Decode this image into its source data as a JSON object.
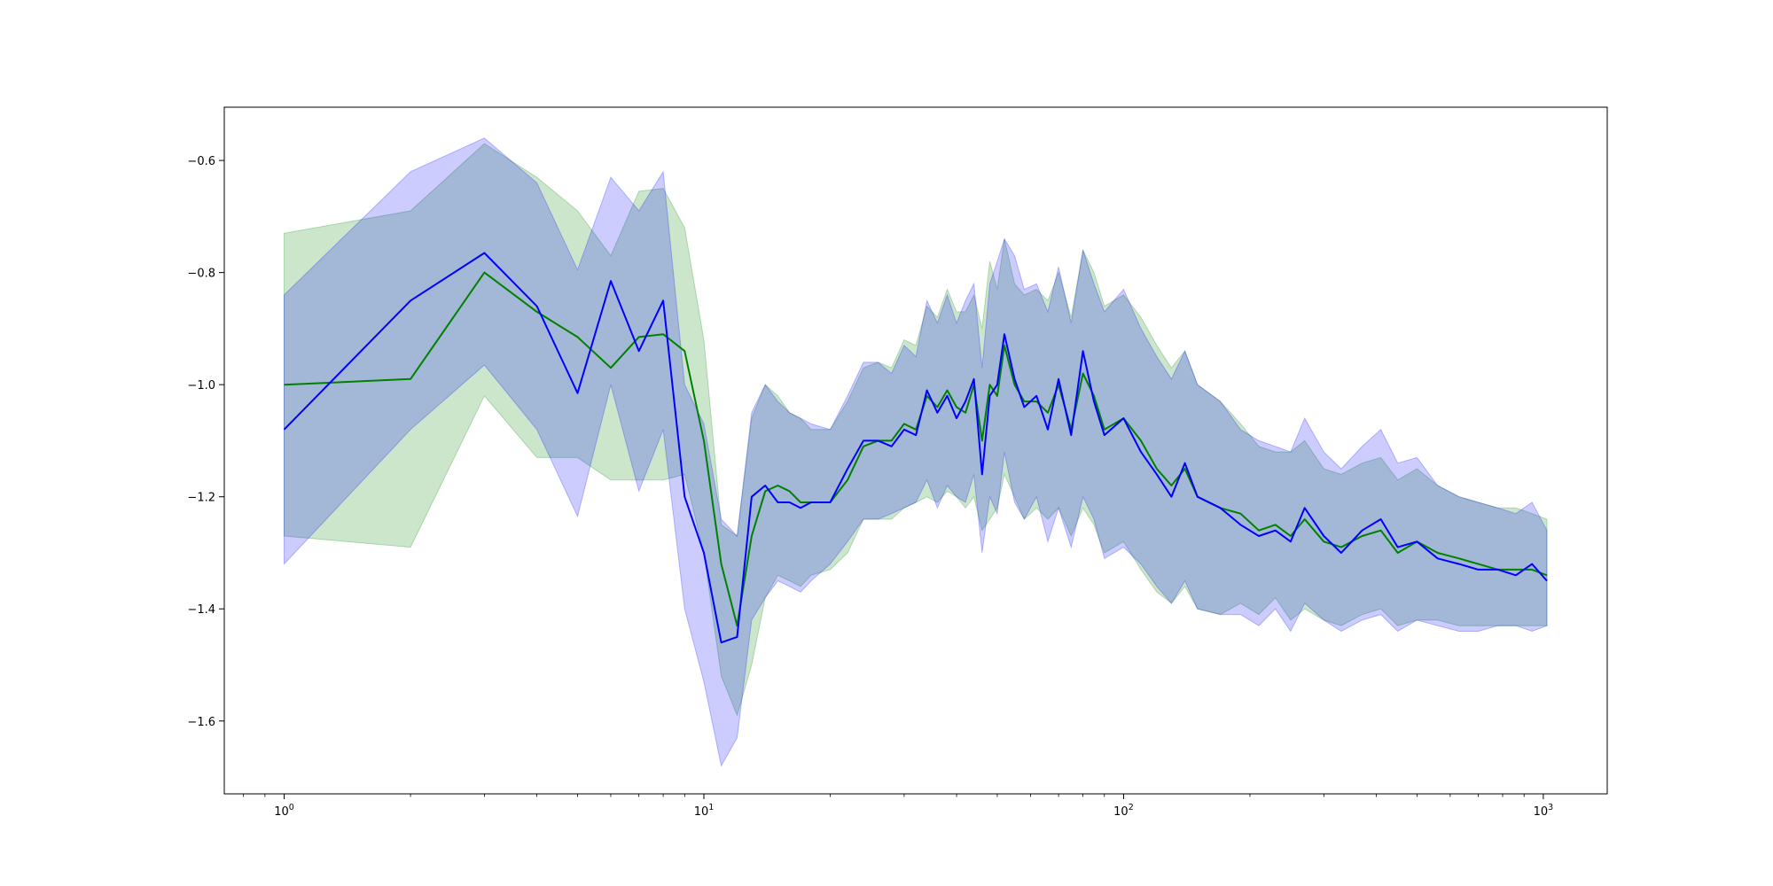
{
  "chart_data": {
    "type": "line",
    "title": "",
    "xlabel": "",
    "ylabel": "",
    "xscale": "log",
    "xlim": [
      0.72,
      1420
    ],
    "ylim": [
      -1.73,
      -0.505
    ],
    "grid": false,
    "xticks": [
      {
        "value": 1,
        "base": "10",
        "exp": "0"
      },
      {
        "value": 10,
        "base": "10",
        "exp": "1"
      },
      {
        "value": 100,
        "base": "10",
        "exp": "2"
      },
      {
        "value": 1000,
        "base": "10",
        "exp": "3"
      }
    ],
    "yticks": [
      {
        "value": -0.6,
        "label": "−0.6"
      },
      {
        "value": -0.8,
        "label": "−0.8"
      },
      {
        "value": -1.0,
        "label": "−1.0"
      },
      {
        "value": -1.2,
        "label": "−1.2"
      },
      {
        "value": -1.4,
        "label": "−1.4"
      },
      {
        "value": -1.6,
        "label": "−1.6"
      }
    ],
    "series": [
      {
        "color": "#008000",
        "band_color": "#008000",
        "band_opacity": 0.2,
        "x": [
          1,
          2,
          3,
          4,
          5,
          6,
          7,
          8,
          9,
          10,
          11,
          12,
          13,
          14,
          15,
          16,
          17,
          18,
          20,
          22,
          24,
          26,
          28,
          30,
          32,
          34,
          36,
          38,
          40,
          42,
          44,
          46,
          48,
          50,
          52,
          55,
          58,
          62,
          66,
          70,
          75,
          80,
          85,
          90,
          100,
          110,
          120,
          130,
          140,
          150,
          170,
          190,
          210,
          230,
          250,
          270,
          300,
          330,
          370,
          410,
          450,
          500,
          560,
          630,
          700,
          780,
          860,
          940,
          1020
        ],
        "values": [
          -1.0,
          -0.99,
          -0.8,
          -0.87,
          -0.915,
          -0.97,
          -0.915,
          -0.91,
          -0.94,
          -1.1,
          -1.32,
          -1.43,
          -1.27,
          -1.19,
          -1.18,
          -1.19,
          -1.21,
          -1.21,
          -1.21,
          -1.17,
          -1.11,
          -1.1,
          -1.1,
          -1.07,
          -1.08,
          -1.02,
          -1.04,
          -1.01,
          -1.04,
          -1.05,
          -1.0,
          -1.1,
          -1.0,
          -1.02,
          -0.93,
          -1.0,
          -1.03,
          -1.03,
          -1.05,
          -1.0,
          -1.08,
          -0.98,
          -1.02,
          -1.08,
          -1.06,
          -1.1,
          -1.15,
          -1.18,
          -1.15,
          -1.2,
          -1.22,
          -1.23,
          -1.26,
          -1.25,
          -1.27,
          -1.24,
          -1.28,
          -1.29,
          -1.27,
          -1.26,
          -1.3,
          -1.28,
          -1.3,
          -1.31,
          -1.32,
          -1.33,
          -1.33,
          -1.33,
          -1.34
        ],
        "lower": [
          -1.27,
          -1.29,
          -1.02,
          -1.13,
          -1.13,
          -1.17,
          -1.17,
          -1.17,
          -1.16,
          -1.3,
          -1.52,
          -1.59,
          -1.5,
          -1.38,
          -1.34,
          -1.35,
          -1.36,
          -1.34,
          -1.33,
          -1.3,
          -1.24,
          -1.24,
          -1.24,
          -1.22,
          -1.21,
          -1.2,
          -1.21,
          -1.19,
          -1.2,
          -1.22,
          -1.2,
          -1.26,
          -1.24,
          -1.22,
          -1.16,
          -1.2,
          -1.24,
          -1.22,
          -1.24,
          -1.22,
          -1.27,
          -1.22,
          -1.25,
          -1.3,
          -1.28,
          -1.33,
          -1.37,
          -1.39,
          -1.36,
          -1.4,
          -1.41,
          -1.39,
          -1.41,
          -1.38,
          -1.42,
          -1.4,
          -1.42,
          -1.43,
          -1.41,
          -1.4,
          -1.43,
          -1.42,
          -1.42,
          -1.43,
          -1.43,
          -1.43,
          -1.43,
          -1.43,
          -1.43
        ],
        "upper": [
          -0.73,
          -0.69,
          -0.57,
          -0.63,
          -0.69,
          -0.77,
          -0.655,
          -0.65,
          -0.72,
          -0.92,
          -1.25,
          -1.27,
          -1.06,
          -1.0,
          -1.02,
          -1.05,
          -1.06,
          -1.08,
          -1.08,
          -1.03,
          -0.97,
          -0.96,
          -0.97,
          -0.92,
          -0.93,
          -0.86,
          -0.88,
          -0.83,
          -0.87,
          -0.87,
          -0.84,
          -0.9,
          -0.78,
          -0.83,
          -0.74,
          -0.82,
          -0.84,
          -0.83,
          -0.85,
          -0.8,
          -0.88,
          -0.76,
          -0.8,
          -0.86,
          -0.84,
          -0.88,
          -0.93,
          -0.97,
          -0.94,
          -1.0,
          -1.03,
          -1.07,
          -1.11,
          -1.12,
          -1.12,
          -1.1,
          -1.15,
          -1.16,
          -1.14,
          -1.13,
          -1.17,
          -1.15,
          -1.18,
          -1.2,
          -1.21,
          -1.22,
          -1.22,
          -1.23,
          -1.24
        ]
      },
      {
        "color": "#0000ff",
        "band_color": "#0000ff",
        "band_opacity": 0.2,
        "x": [
          1,
          2,
          3,
          4,
          5,
          6,
          7,
          8,
          9,
          10,
          11,
          12,
          13,
          14,
          15,
          16,
          17,
          18,
          20,
          22,
          24,
          26,
          28,
          30,
          32,
          34,
          36,
          38,
          40,
          42,
          44,
          46,
          48,
          50,
          52,
          55,
          58,
          62,
          66,
          70,
          75,
          80,
          85,
          90,
          100,
          110,
          120,
          130,
          140,
          150,
          170,
          190,
          210,
          230,
          250,
          270,
          300,
          330,
          370,
          410,
          450,
          500,
          560,
          630,
          700,
          780,
          860,
          940,
          1020
        ],
        "values": [
          -1.08,
          -0.85,
          -0.765,
          -0.86,
          -1.015,
          -0.815,
          -0.94,
          -0.85,
          -1.2,
          -1.3,
          -1.46,
          -1.45,
          -1.2,
          -1.18,
          -1.21,
          -1.21,
          -1.22,
          -1.21,
          -1.21,
          -1.15,
          -1.1,
          -1.1,
          -1.11,
          -1.08,
          -1.09,
          -1.01,
          -1.05,
          -1.02,
          -1.06,
          -1.03,
          -0.99,
          -1.16,
          -1.02,
          -1.0,
          -0.91,
          -0.99,
          -1.04,
          -1.02,
          -1.08,
          -0.99,
          -1.09,
          -0.94,
          -1.03,
          -1.09,
          -1.06,
          -1.12,
          -1.16,
          -1.2,
          -1.14,
          -1.2,
          -1.22,
          -1.25,
          -1.27,
          -1.26,
          -1.28,
          -1.22,
          -1.27,
          -1.3,
          -1.26,
          -1.24,
          -1.29,
          -1.28,
          -1.31,
          -1.32,
          -1.33,
          -1.33,
          -1.34,
          -1.32,
          -1.35
        ],
        "lower": [
          -1.32,
          -1.08,
          -0.965,
          -1.08,
          -1.235,
          -1.0,
          -1.19,
          -1.08,
          -1.4,
          -1.53,
          -1.68,
          -1.63,
          -1.42,
          -1.38,
          -1.35,
          -1.36,
          -1.37,
          -1.35,
          -1.32,
          -1.28,
          -1.24,
          -1.24,
          -1.23,
          -1.22,
          -1.21,
          -1.17,
          -1.22,
          -1.18,
          -1.2,
          -1.21,
          -1.16,
          -1.3,
          -1.2,
          -1.23,
          -1.12,
          -1.21,
          -1.24,
          -1.2,
          -1.28,
          -1.22,
          -1.29,
          -1.2,
          -1.24,
          -1.31,
          -1.29,
          -1.32,
          -1.36,
          -1.39,
          -1.35,
          -1.4,
          -1.41,
          -1.41,
          -1.43,
          -1.4,
          -1.44,
          -1.39,
          -1.42,
          -1.44,
          -1.42,
          -1.41,
          -1.44,
          -1.42,
          -1.43,
          -1.44,
          -1.44,
          -1.43,
          -1.43,
          -1.44,
          -1.43
        ],
        "upper": [
          -0.84,
          -0.62,
          -0.56,
          -0.64,
          -0.795,
          -0.63,
          -0.69,
          -0.62,
          -1.0,
          -1.07,
          -1.24,
          -1.27,
          -1.05,
          -1.0,
          -1.03,
          -1.05,
          -1.06,
          -1.07,
          -1.08,
          -1.02,
          -0.96,
          -0.96,
          -0.98,
          -0.93,
          -0.95,
          -0.85,
          -0.89,
          -0.84,
          -0.89,
          -0.85,
          -0.82,
          -0.97,
          -0.82,
          -0.78,
          -0.74,
          -0.77,
          -0.83,
          -0.82,
          -0.87,
          -0.79,
          -0.89,
          -0.76,
          -0.82,
          -0.87,
          -0.83,
          -0.9,
          -0.95,
          -0.99,
          -0.94,
          -1.0,
          -1.03,
          -1.08,
          -1.1,
          -1.11,
          -1.12,
          -1.06,
          -1.12,
          -1.15,
          -1.11,
          -1.08,
          -1.14,
          -1.13,
          -1.18,
          -1.2,
          -1.21,
          -1.22,
          -1.23,
          -1.21,
          -1.26
        ]
      }
    ]
  }
}
